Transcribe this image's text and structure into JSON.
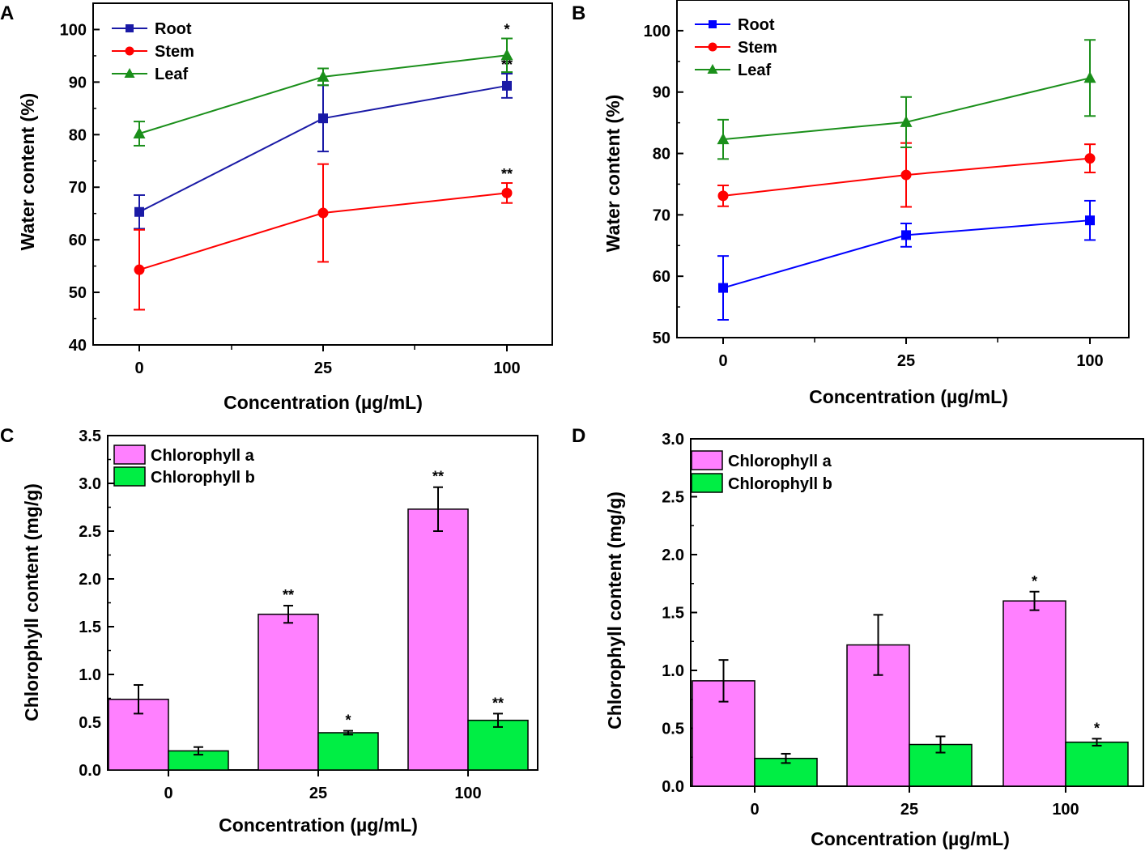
{
  "figure": {
    "chart_data": [
      {
        "panel": "A",
        "type": "line",
        "xlabel": "Concentration (µg/mL)",
        "ylabel": "Water content (%)",
        "categories": [
          "0",
          "25",
          "100"
        ],
        "ylim": [
          40,
          105
        ],
        "yticks": [
          40,
          50,
          60,
          70,
          80,
          90,
          100
        ],
        "legend_position": "top-left",
        "series": [
          {
            "name": "Root",
            "color": "#1a1aa6",
            "marker": "square",
            "values": [
              65.3,
              83.1,
              89.3
            ],
            "errors": [
              3.2,
              6.3,
              2.3
            ],
            "sig": [
              "",
              "",
              "**"
            ]
          },
          {
            "name": "Stem",
            "color": "#ff0000",
            "marker": "circle",
            "values": [
              54.3,
              65.1,
              68.9
            ],
            "errors": [
              7.6,
              9.3,
              1.9
            ],
            "sig": [
              "",
              "",
              "**"
            ]
          },
          {
            "name": "Leaf",
            "color": "#1a8f1a",
            "marker": "triangle",
            "values": [
              80.2,
              91.0,
              95.1
            ],
            "errors": [
              2.3,
              1.6,
              3.2
            ],
            "sig": [
              "",
              "",
              "*"
            ]
          }
        ]
      },
      {
        "panel": "B",
        "type": "line",
        "xlabel": "Concentration (µg/mL)",
        "ylabel": "Water content (%)",
        "categories": [
          "0",
          "25",
          "100"
        ],
        "ylim": [
          50,
          105
        ],
        "yticks": [
          50,
          60,
          70,
          80,
          90,
          100
        ],
        "legend_position": "top-left",
        "series": [
          {
            "name": "Root",
            "color": "#0000ff",
            "marker": "square",
            "values": [
              58.1,
              66.7,
              69.1
            ],
            "errors": [
              5.2,
              1.9,
              3.2
            ],
            "sig": [
              "",
              "",
              ""
            ]
          },
          {
            "name": "Stem",
            "color": "#ff0000",
            "marker": "circle",
            "values": [
              73.1,
              76.5,
              79.2
            ],
            "errors": [
              1.7,
              5.2,
              2.3
            ],
            "sig": [
              "",
              "",
              ""
            ]
          },
          {
            "name": "Leaf",
            "color": "#1a8f1a",
            "marker": "triangle",
            "values": [
              82.3,
              85.1,
              92.3
            ],
            "errors": [
              3.2,
              4.1,
              6.2
            ],
            "sig": [
              "",
              "",
              ""
            ]
          }
        ]
      },
      {
        "panel": "C",
        "type": "bar",
        "xlabel": "Concentration (µg/mL)",
        "ylabel": "Chlorophyll content (mg/g)",
        "categories": [
          "0",
          "25",
          "100"
        ],
        "ylim": [
          0,
          3.5
        ],
        "yticks": [
          "0.0",
          "0.5",
          "1.0",
          "1.5",
          "2.0",
          "2.5",
          "3.0",
          "3.5"
        ],
        "legend_position": "top-left",
        "series": [
          {
            "name": "Chlorophyll a",
            "color": "#ff80ff",
            "values": [
              0.74,
              1.63,
              2.73
            ],
            "errors": [
              0.15,
              0.09,
              0.23
            ],
            "sig": [
              "",
              "**",
              "**"
            ]
          },
          {
            "name": "Chlorophyll b",
            "color": "#00ee44",
            "values": [
              0.2,
              0.39,
              0.52
            ],
            "errors": [
              0.04,
              0.02,
              0.07
            ],
            "sig": [
              "",
              "*",
              "**"
            ]
          }
        ]
      },
      {
        "panel": "D",
        "type": "bar",
        "xlabel": "Concentration (µg/mL)",
        "ylabel": "Chlorophyll content (mg/g)",
        "categories": [
          "0",
          "25",
          "100"
        ],
        "ylim": [
          0,
          3.0
        ],
        "yticks": [
          "0.0",
          "0.5",
          "1.0",
          "1.5",
          "2.0",
          "2.5",
          "3.0"
        ],
        "legend_position": "top-left",
        "series": [
          {
            "name": "Chlorophyll a",
            "color": "#ff80ff",
            "values": [
              0.91,
              1.22,
              1.6
            ],
            "errors": [
              0.18,
              0.26,
              0.08
            ],
            "sig": [
              "",
              "",
              "*"
            ]
          },
          {
            "name": "Chlorophyll b",
            "color": "#00ee44",
            "values": [
              0.24,
              0.36,
              0.38
            ],
            "errors": [
              0.04,
              0.07,
              0.03
            ],
            "sig": [
              "",
              "",
              "*"
            ]
          }
        ]
      }
    ]
  }
}
